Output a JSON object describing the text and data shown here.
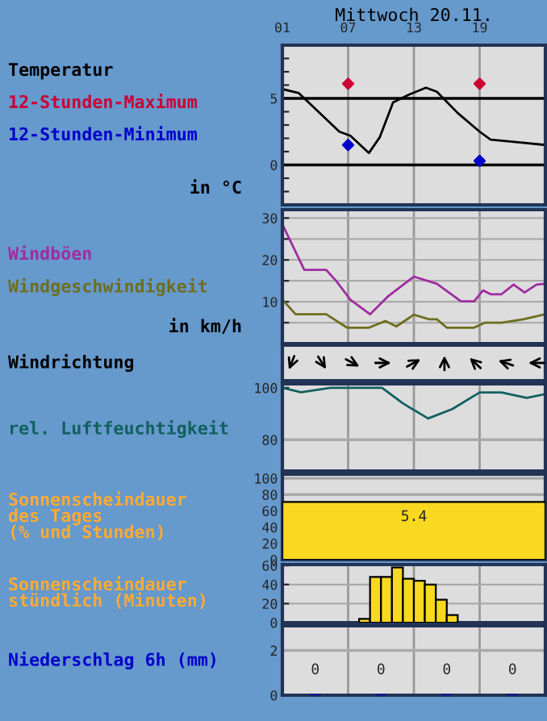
{
  "chart_data": [
    {
      "type": "line",
      "title": "Mittwoch 20.11.",
      "ylabel": "in °C",
      "legend": "left",
      "grid": "x",
      "xlim": [
        1,
        25
      ],
      "xticks": [
        {
          "value": 1,
          "label": "01"
        },
        {
          "value": 7,
          "label": "07"
        },
        {
          "value": 13,
          "label": "13"
        },
        {
          "value": 19,
          "label": "19"
        }
      ],
      "ylim": [
        -3,
        9
      ],
      "yticks": [
        {
          "value": -2,
          "label": null
        },
        {
          "value": -1,
          "label": null
        },
        0,
        {
          "value": 1,
          "label": null
        },
        {
          "value": 2,
          "label": null
        },
        {
          "value": 3,
          "label": null
        },
        {
          "value": 4,
          "label": null
        },
        5,
        {
          "value": 6,
          "label": null
        },
        {
          "value": 7,
          "label": null
        },
        {
          "value": 8,
          "label": null
        }
      ],
      "ref_lines": [
        {
          "axis": "y",
          "value": 0,
          "color": "#000000"
        },
        {
          "axis": "y",
          "value": 5,
          "color": "#000000"
        }
      ],
      "series": [
        {
          "name": "Temperatur",
          "color": "#000000",
          "x": [
            1,
            2.5,
            6.2,
            7.2,
            8.9,
            9.9,
            11.1,
            12.6,
            14.1,
            15.1,
            17,
            19,
            20,
            22.5,
            25
          ],
          "values": [
            5.7,
            5.4,
            2.5,
            2.2,
            0.9,
            2.1,
            4.7,
            5.3,
            5.8,
            5.5,
            3.9,
            2.5,
            1.9,
            1.7,
            1.5
          ]
        },
        {
          "name": "12-Stunden-Maximum",
          "type": "scatter",
          "marker": "diamond",
          "color": "#cc0033",
          "x": [
            7,
            19
          ],
          "values": [
            6.1,
            6.1
          ]
        },
        {
          "name": "12-Stunden-Minimum",
          "type": "scatter",
          "marker": "diamond",
          "color": "#0000cc",
          "x": [
            7,
            19
          ],
          "values": [
            1.5,
            0.3
          ]
        }
      ]
    },
    {
      "type": "line",
      "ylabel": "in km/h",
      "legend": "left",
      "grid": true,
      "tick_labels": "y",
      "xlim": [
        1,
        25
      ],
      "xticks": [
        {
          "value": 7,
          "label": null
        },
        {
          "value": 13,
          "label": null
        },
        {
          "value": 19,
          "label": null
        }
      ],
      "ylim": [
        0,
        32
      ],
      "yticks": [
        {
          "value": 5,
          "label": null
        },
        10,
        {
          "value": 15,
          "label": null
        },
        20,
        {
          "value": 25,
          "label": null
        },
        30
      ],
      "series": [
        {
          "name": "Windböen",
          "color": "#a02ca0",
          "x": [
            1,
            3,
            5,
            5.9,
            7.2,
            9,
            10.6,
            13,
            15.1,
            17.3,
            18.5,
            19.3,
            20,
            21,
            22.1,
            23.1,
            24.2,
            25
          ],
          "values": [
            28.5,
            17.6,
            17.6,
            15,
            10.5,
            7,
            11.2,
            16,
            14.3,
            10.1,
            10.1,
            12.7,
            11.8,
            11.8,
            14.1,
            12.2,
            14.1,
            14.3
          ]
        },
        {
          "name": "Windgeschwindigkeit",
          "color": "#6e6e1e",
          "x": [
            1,
            2.2,
            5,
            6.9,
            8.9,
            10.4,
            11.4,
            13,
            14.4,
            15.1,
            16,
            18.5,
            19.5,
            21,
            23,
            25
          ],
          "values": [
            10.5,
            7,
            7,
            3.8,
            3.8,
            5.4,
            4.1,
            6.9,
            5.8,
            5.8,
            3.8,
            3.8,
            5,
            5,
            5.8,
            7
          ]
        }
      ]
    },
    {
      "type": "other",
      "title": "Windrichtung"
    },
    {
      "type": "line",
      "legend": "left",
      "grid": "x",
      "tick_labels": "y",
      "xlim": [
        1,
        25
      ],
      "xticks": [
        {
          "value": 7,
          "label": null
        },
        {
          "value": 13,
          "label": null
        },
        {
          "value": 19,
          "label": null
        }
      ],
      "ylim": [
        68,
        101.5
      ],
      "yticks": [
        80,
        100
      ],
      "ref_lines": [
        {
          "axis": "y",
          "value": 80,
          "color": "#aaaaaa"
        }
      ],
      "series": [
        {
          "name": "rel. Luftfeuchtigkeit",
          "color": "#11605f",
          "x": [
            1,
            2.7,
            5.4,
            10.1,
            12,
            14.3,
            16.5,
            19,
            21,
            23.3,
            25
          ],
          "values": [
            100,
            98.3,
            100,
            100,
            94,
            88.2,
            91.8,
            98.2,
            98.2,
            96.1,
            97.6
          ]
        }
      ]
    },
    {
      "type": "bar",
      "ylabel": "Sonnenscheindauer\ndes Tages\n(% und Stunden)",
      "tick_labels": "y",
      "ref_lines": [
        {
          "axis": "y",
          "value": 80,
          "color": "#aaaaaa"
        },
        {
          "axis": "y",
          "value": 100,
          "color": "#aaaaaa"
        }
      ],
      "categories": [
        null
      ],
      "values": [
        71
      ],
      "annotations": [
        "5.4"
      ],
      "color": "#f8d820",
      "ylim": [
        0,
        105
      ],
      "yticks": [
        0,
        20,
        40,
        60,
        80,
        100
      ]
    },
    {
      "type": "histogram",
      "ylabel": "Sonnenscheindauer\nstündlich (Minuten)",
      "grid": true,
      "tick_labels": "y",
      "xlim": [
        1,
        25
      ],
      "xticks": [
        {
          "value": 7,
          "label": null
        },
        {
          "value": 13,
          "label": null
        },
        {
          "value": 19,
          "label": null
        }
      ],
      "bins": [
        8,
        9,
        10,
        11,
        12,
        13,
        14,
        15,
        16,
        17
      ],
      "values": [
        4,
        48,
        48,
        58,
        46,
        44,
        40,
        24,
        8
      ],
      "color": "#f8d820",
      "ylim": [
        0,
        61
      ],
      "yticks": [
        0,
        20,
        40,
        60
      ]
    },
    {
      "type": "bar",
      "ylabel": "Niederschlag 6h (mm)",
      "grid": "x",
      "tick_labels": "y",
      "data_labels": true,
      "xlim": [
        1,
        25
      ],
      "xticks": [
        {
          "value": 7,
          "label": null
        },
        {
          "value": 13,
          "label": null
        },
        {
          "value": 19,
          "label": null
        }
      ],
      "ref_lines": [
        {
          "axis": "y",
          "value": 2,
          "color": "#aaaaaa"
        }
      ],
      "x": [
        4,
        10,
        16,
        22
      ],
      "values": [
        0,
        0,
        0,
        0
      ],
      "color": "#0000cc",
      "ylim": [
        0,
        3.1
      ],
      "yticks": [
        0,
        2
      ]
    }
  ]
}
